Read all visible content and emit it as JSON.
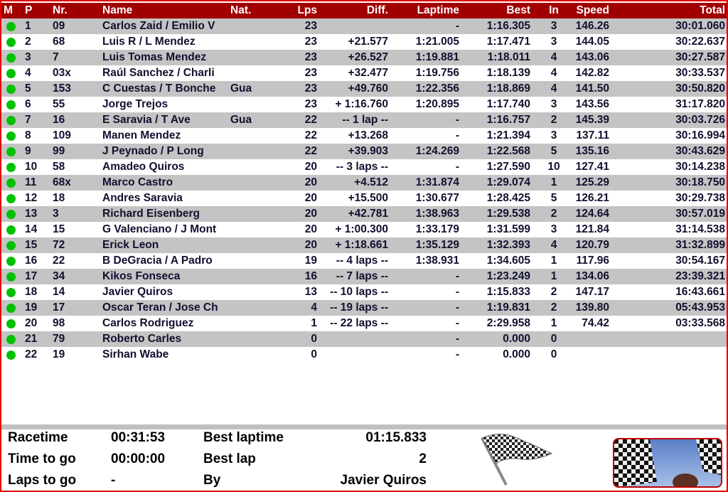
{
  "columns": {
    "m": "M",
    "p": "P",
    "nr": "Nr.",
    "name": "Name",
    "nat": "Nat.",
    "lps": "Lps",
    "diff": "Diff.",
    "laptime": "Laptime",
    "best": "Best",
    "in": "In",
    "speed": "Speed",
    "total": "Total"
  },
  "colors": {
    "header": "#a00000",
    "status_dot": "#00c000",
    "row_alt": "#c4c4c4",
    "border": "#e00000"
  },
  "rows": [
    {
      "p": "1",
      "nr": "09",
      "name": "Carlos Zaid / Emilio V",
      "nat": "",
      "lps": "23",
      "diff": "",
      "laptime": "-",
      "best": "1:16.305",
      "in": "3",
      "speed": "146.26",
      "total": "30:01.060"
    },
    {
      "p": "2",
      "nr": "68",
      "name": "Luis R / L Mendez",
      "nat": "",
      "lps": "23",
      "diff": "+21.577",
      "laptime": "1:21.005",
      "best": "1:17.471",
      "in": "3",
      "speed": "144.05",
      "total": "30:22.637"
    },
    {
      "p": "3",
      "nr": "7",
      "name": "Luis Tomas Mendez",
      "nat": "",
      "lps": "23",
      "diff": "+26.527",
      "laptime": "1:19.881",
      "best": "1:18.011",
      "in": "4",
      "speed": "143.06",
      "total": "30:27.587"
    },
    {
      "p": "4",
      "nr": "03x",
      "name": "Raúl Sanchez / Charli",
      "nat": "",
      "lps": "23",
      "diff": "+32.477",
      "laptime": "1:19.756",
      "best": "1:18.139",
      "in": "4",
      "speed": "142.82",
      "total": "30:33.537"
    },
    {
      "p": "5",
      "nr": "153",
      "name": "C Cuestas /  T Bonche",
      "nat": "Gua",
      "lps": "23",
      "diff": "+49.760",
      "laptime": "1:22.356",
      "best": "1:18.869",
      "in": "4",
      "speed": "141.50",
      "total": "30:50.820"
    },
    {
      "p": "6",
      "nr": "55",
      "name": "Jorge Trejos",
      "nat": "",
      "lps": "23",
      "diff": "+ 1:16.760",
      "laptime": "1:20.895",
      "best": "1:17.740",
      "in": "3",
      "speed": "143.56",
      "total": "31:17.820"
    },
    {
      "p": "7",
      "nr": "16",
      "name": "E Saravia / T Ave",
      "nat": "Gua",
      "lps": "22",
      "diff": "-- 1 lap --",
      "laptime": "-",
      "best": "1:16.757",
      "in": "2",
      "speed": "145.39",
      "total": "30:03.726"
    },
    {
      "p": "8",
      "nr": "109",
      "name": "Manen Mendez",
      "nat": "",
      "lps": "22",
      "diff": "+13.268",
      "laptime": "-",
      "best": "1:21.394",
      "in": "3",
      "speed": "137.11",
      "total": "30:16.994"
    },
    {
      "p": "9",
      "nr": "99",
      "name": "J Peynado / P Long",
      "nat": "",
      "lps": "22",
      "diff": "+39.903",
      "laptime": "1:24.269",
      "best": "1:22.568",
      "in": "5",
      "speed": "135.16",
      "total": "30:43.629"
    },
    {
      "p": "10",
      "nr": "58",
      "name": "Amadeo Quiros",
      "nat": "",
      "lps": "20",
      "diff": "-- 3 laps --",
      "laptime": "-",
      "best": "1:27.590",
      "in": "10",
      "speed": "127.41",
      "total": "30:14.238"
    },
    {
      "p": "11",
      "nr": "68x",
      "name": "Marco Castro",
      "nat": "",
      "lps": "20",
      "diff": "+4.512",
      "laptime": "1:31.874",
      "best": "1:29.074",
      "in": "1",
      "speed": "125.29",
      "total": "30:18.750"
    },
    {
      "p": "12",
      "nr": "18",
      "name": "Andres Saravia",
      "nat": "",
      "lps": "20",
      "diff": "+15.500",
      "laptime": "1:30.677",
      "best": "1:28.425",
      "in": "5",
      "speed": "126.21",
      "total": "30:29.738"
    },
    {
      "p": "13",
      "nr": "3",
      "name": "Richard Eisenberg",
      "nat": "",
      "lps": "20",
      "diff": "+42.781",
      "laptime": "1:38.963",
      "best": "1:29.538",
      "in": "2",
      "speed": "124.64",
      "total": "30:57.019"
    },
    {
      "p": "14",
      "nr": "15",
      "name": "G Valenciano / J Mont",
      "nat": "",
      "lps": "20",
      "diff": "+ 1:00.300",
      "laptime": "1:33.179",
      "best": "1:31.599",
      "in": "3",
      "speed": "121.84",
      "total": "31:14.538"
    },
    {
      "p": "15",
      "nr": "72",
      "name": "Erick Leon",
      "nat": "",
      "lps": "20",
      "diff": "+ 1:18.661",
      "laptime": "1:35.129",
      "best": "1:32.393",
      "in": "4",
      "speed": "120.79",
      "total": "31:32.899"
    },
    {
      "p": "16",
      "nr": "22",
      "name": "B DeGracia /  A Padro",
      "nat": "",
      "lps": "19",
      "diff": "-- 4 laps --",
      "laptime": "1:38.931",
      "best": "1:34.605",
      "in": "1",
      "speed": "117.96",
      "total": "30:54.167"
    },
    {
      "p": "17",
      "nr": "34",
      "name": "Kikos Fonseca",
      "nat": "",
      "lps": "16",
      "diff": "-- 7 laps --",
      "laptime": "-",
      "best": "1:23.249",
      "in": "1",
      "speed": "134.06",
      "total": "23:39.321"
    },
    {
      "p": "18",
      "nr": "14",
      "name": "Javier Quiros",
      "nat": "",
      "lps": "13",
      "diff": "-- 10 laps --",
      "laptime": "-",
      "best": "1:15.833",
      "in": "2",
      "speed": "147.17",
      "total": "16:43.661"
    },
    {
      "p": "19",
      "nr": "17",
      "name": "Oscar Teran / Jose Ch",
      "nat": "",
      "lps": "4",
      "diff": "-- 19 laps --",
      "laptime": "-",
      "best": "1:19.831",
      "in": "2",
      "speed": "139.80",
      "total": "05:43.953"
    },
    {
      "p": "20",
      "nr": "98",
      "name": "Carlos Rodriguez",
      "nat": "",
      "lps": "1",
      "diff": "-- 22 laps --",
      "laptime": "-",
      "best": "2:29.958",
      "in": "1",
      "speed": "74.42",
      "total": "03:33.568"
    },
    {
      "p": "21",
      "nr": "79",
      "name": "Roberto  Carles",
      "nat": "",
      "lps": "0",
      "diff": "",
      "laptime": "-",
      "best": "0.000",
      "in": "0",
      "speed": "",
      "total": ""
    },
    {
      "p": "22",
      "nr": "19",
      "name": "Sirhan Wabe",
      "nat": "",
      "lps": "0",
      "diff": "",
      "laptime": "-",
      "best": "0.000",
      "in": "0",
      "speed": "",
      "total": ""
    }
  ],
  "footer": {
    "racetime_label": "Racetime",
    "racetime": "00:31:53",
    "time_to_go_label": "Time to go",
    "time_to_go": "00:00:00",
    "laps_to_go_label": "Laps to go",
    "laps_to_go": "-",
    "best_laptime_label": "Best laptime",
    "best_laptime": "01:15.833",
    "best_lap_label": "Best lap",
    "best_lap": "2",
    "by_label": "By",
    "by": "Javier Quiros"
  },
  "icons": {
    "flag": "checkered-flag-icon",
    "photo": "checkered-flags-photo"
  }
}
